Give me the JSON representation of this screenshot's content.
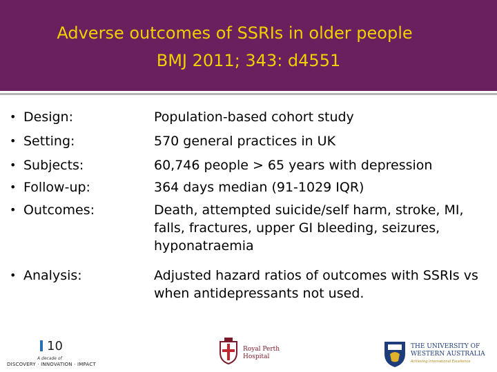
{
  "title": {
    "line1": "Adverse outcomes of SSRIs in older people",
    "line2": "BMJ 2011; 343: d4551"
  },
  "items": [
    {
      "term": "Design:",
      "lines": [
        "Population-based cohort study"
      ]
    },
    {
      "term": "Setting:",
      "lines": [
        "570 general practices in UK"
      ]
    },
    {
      "term": "Subjects:",
      "lines": [
        "60,746 people > 65 years with depression"
      ]
    },
    {
      "term": "Follow-up:",
      "lines": [
        "364 days median (91-1029 IQR)"
      ]
    },
    {
      "term": "Outcomes:",
      "lines": [
        "Death, attempted suicide/self harm, stroke, MI,",
        "falls, fractures, upper GI bleeding, seizures,",
        "hyponatraemia"
      ]
    },
    {
      "term": "Analysis:",
      "lines": [
        "Adjusted hazard ratios of outcomes with SSRIs vs",
        "when antidepressants not used."
      ]
    }
  ],
  "bullet_char": "•",
  "footer": {
    "decade_logo": {
      "number": "10",
      "tagline": "A decade of",
      "subtitle": "DISCOVERY · INNOVATION · IMPACT"
    },
    "hospital_logo": {
      "line1": "Royal Perth",
      "line2": "Hospital"
    },
    "university_logo": {
      "line1": "THE UNIVERSITY OF",
      "line2": "WESTERN AUSTRALIA",
      "tagline": "Achieving International Excellence"
    }
  },
  "colors": {
    "title_bg": "#6a1f5e",
    "title_text": "#f0d000",
    "rule": "#b3b3b3",
    "body_text": "#000000"
  }
}
